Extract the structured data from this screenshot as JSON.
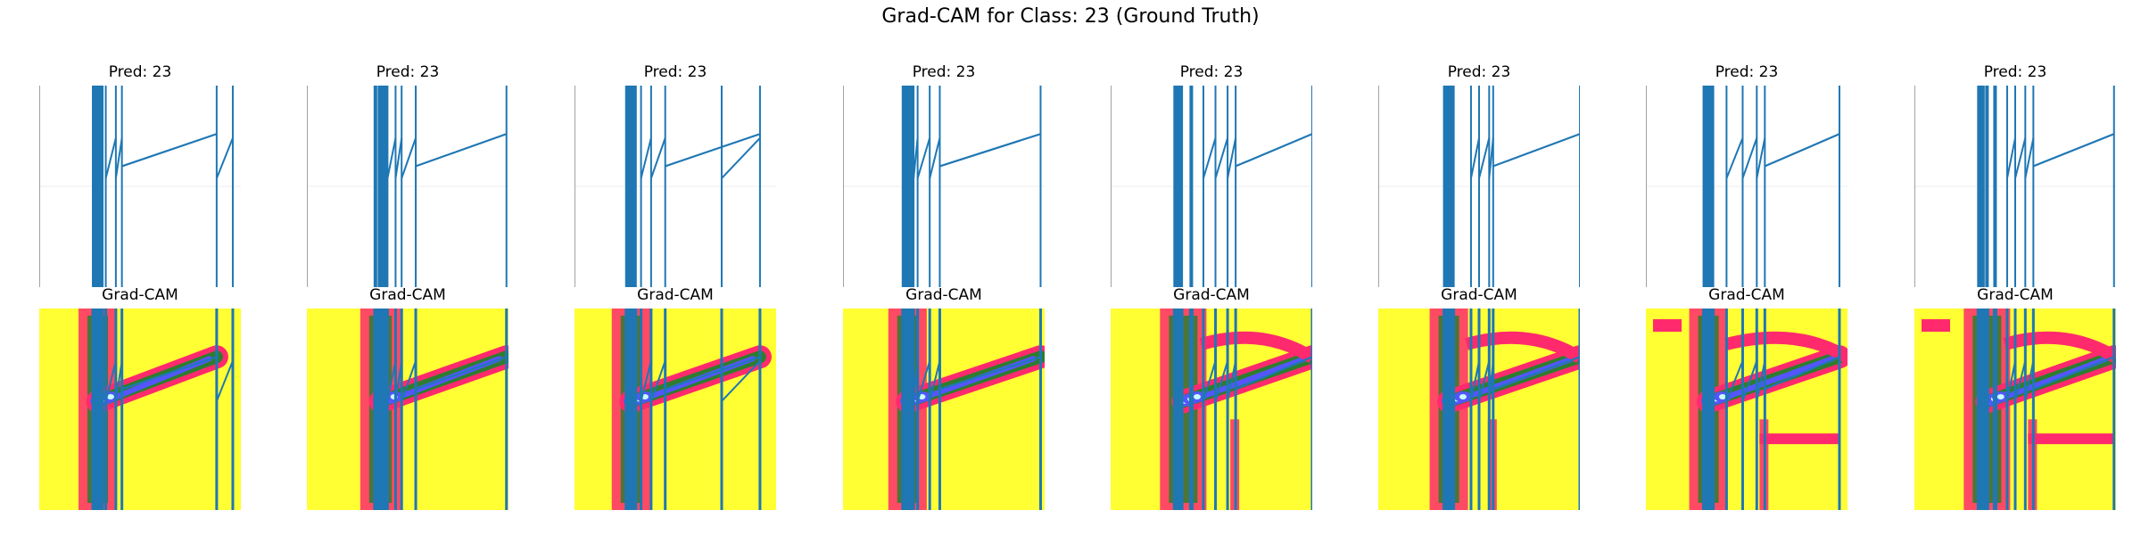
{
  "figure": {
    "suptitle": "Grad-CAM for Class: 23 (Ground Truth)"
  },
  "chart_data": {
    "type": "line",
    "title": "Grad-CAM for Class: 23 (Ground Truth)",
    "rows": [
      {
        "name": "prediction",
        "titles": [
          "Pred: 23",
          "Pred: 23",
          "Pred: 23",
          "Pred: 23",
          "Pred: 23",
          "Pred: 23",
          "Pred: 23",
          "Pred: 23"
        ]
      },
      {
        "name": "gradcam",
        "titles": [
          "Grad-CAM",
          "Grad-CAM",
          "Grad-CAM",
          "Grad-CAM",
          "Grad-CAM",
          "Grad-CAM",
          "Grad-CAM",
          "Grad-CAM"
        ]
      }
    ],
    "axes": "off",
    "line_color": "#1f77b4",
    "heatmap_colors": [
      "#ffff33",
      "#ff2a6d",
      "#2e7d2e",
      "#5555ff",
      "#c8ffff"
    ],
    "samples": [
      {
        "spikes": [
          0.27,
          0.28,
          0.29,
          0.3,
          0.31,
          0.33,
          0.38,
          0.41,
          0.88,
          0.96
        ],
        "ramp": [
          0.41,
          0.88
        ]
      },
      {
        "spikes": [
          0.34,
          0.36,
          0.37,
          0.38,
          0.39,
          0.4,
          0.44,
          0.47,
          0.54,
          0.99
        ],
        "ramp": [
          0.54,
          0.99
        ]
      },
      {
        "spikes": [
          0.26,
          0.27,
          0.28,
          0.29,
          0.3,
          0.33,
          0.38,
          0.45,
          0.73,
          0.92
        ],
        "ramp": [
          0.45,
          0.92
        ]
      },
      {
        "spikes": [
          0.3,
          0.31,
          0.32,
          0.33,
          0.34,
          0.35,
          0.37,
          0.43,
          0.48,
          0.98
        ],
        "ramp": [
          0.48,
          0.98
        ]
      },
      {
        "spikes": [
          0.32,
          0.33,
          0.34,
          0.35,
          0.4,
          0.46,
          0.52,
          0.58,
          0.62,
          1.0
        ],
        "ramp": [
          0.62,
          1.0
        ]
      },
      {
        "spikes": [
          0.33,
          0.34,
          0.35,
          0.36,
          0.37,
          0.46,
          0.5,
          0.55,
          0.57,
          1.0
        ],
        "ramp": [
          0.57,
          1.0
        ]
      },
      {
        "spikes": [
          0.29,
          0.3,
          0.31,
          0.32,
          0.33,
          0.4,
          0.48,
          0.55,
          0.59,
          0.96
        ],
        "ramp": [
          0.59,
          0.96
        ]
      },
      {
        "spikes": [
          0.32,
          0.33,
          0.34,
          0.36,
          0.4,
          0.46,
          0.5,
          0.55,
          0.59,
          0.99
        ],
        "ramp": [
          0.59,
          0.99
        ]
      }
    ]
  }
}
